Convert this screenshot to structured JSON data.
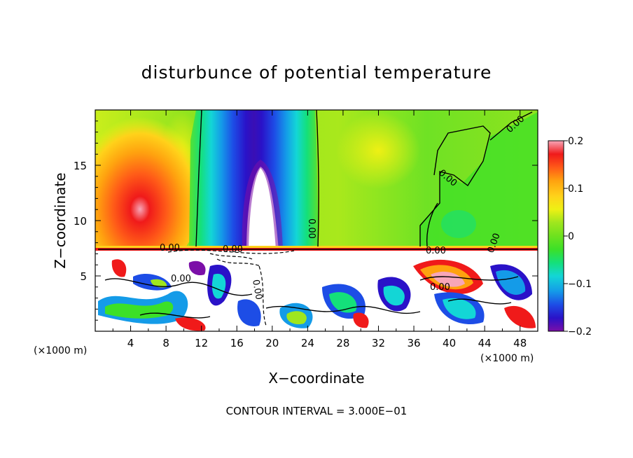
{
  "chart_data": {
    "type": "heatmap",
    "title": "disturbunce of potential temperature",
    "xlabel": "X−coordinate",
    "ylabel": "Z−coordinate",
    "x_unit_label_left": "(×1000 m)",
    "x_unit_label_right": "(×1000 m)",
    "xlim": [
      0,
      50
    ],
    "ylim": [
      0,
      20
    ],
    "x_ticks": [
      "4",
      "8",
      "12",
      "16",
      "20",
      "24",
      "28",
      "32",
      "36",
      "40",
      "44",
      "48"
    ],
    "y_ticks": [
      "5",
      "10",
      "15"
    ],
    "colorbar": {
      "range": [
        -0.2,
        0.2
      ],
      "ticks": [
        "0.2",
        "0.1",
        "0",
        "−0.1",
        "−0.2"
      ],
      "colors": [
        "#7b0fa8",
        "#2a12c8",
        "#1d4de6",
        "#149be8",
        "#13d6d6",
        "#14e07a",
        "#3ce028",
        "#9fe61e",
        "#eef014",
        "#ffd21a",
        "#ffa20f",
        "#ff5a18",
        "#f01a1a",
        "#e8507a",
        "#f7a6b8"
      ]
    },
    "contour_labels": [
      "0.00",
      "0.00",
      "0.00",
      "0.00",
      "0.00",
      "0.00",
      "0.00",
      "0.00",
      "0.00",
      "0.00"
    ],
    "annotation": "CONTOUR INTERVAL = 3.000E−01"
  }
}
